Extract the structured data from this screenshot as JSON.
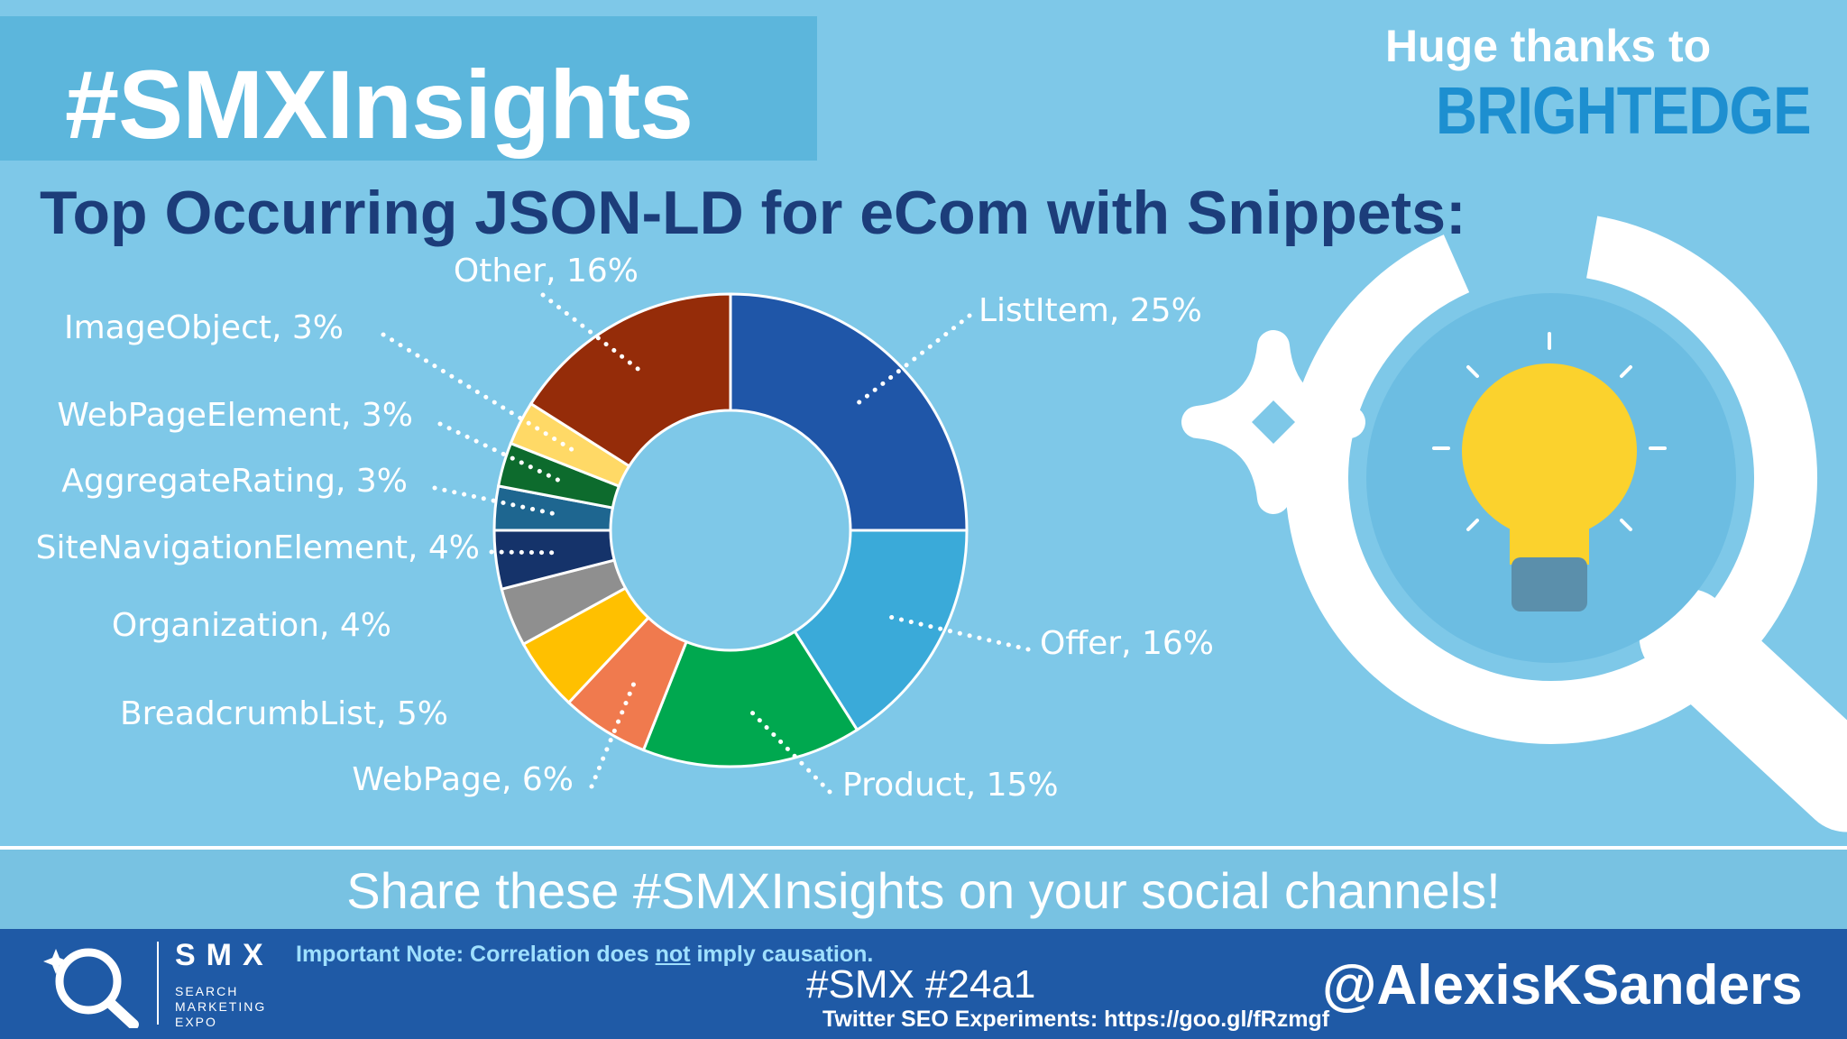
{
  "header": {
    "hashtag": "#SMXInsights",
    "thanks": "Huge thanks to",
    "sponsor": "BRIGHTEDGE"
  },
  "chart_data": {
    "type": "pie",
    "title": "Top Occurring JSON-LD for eCom with Snippets:",
    "donut": true,
    "slices": [
      {
        "label": "ListItem",
        "value": 25,
        "display": "ListItem, 25%",
        "color": "#1f56a8"
      },
      {
        "label": "Offer",
        "value": 16,
        "display": "Offer, 16%",
        "color": "#3aaad9"
      },
      {
        "label": "Product",
        "value": 15,
        "display": "Product, 15%",
        "color": "#00a84f"
      },
      {
        "label": "WebPage",
        "value": 6,
        "display": "WebPage, 6%",
        "color": "#f07a4e"
      },
      {
        "label": "BreadcrumbList",
        "value": 5,
        "display": "BreadcrumbList, 5%",
        "color": "#ffc000"
      },
      {
        "label": "Organization",
        "value": 4,
        "display": "Organization, 4%",
        "color": "#8f8f8f"
      },
      {
        "label": "SiteNavigationElement",
        "value": 4,
        "display": "SiteNavigationElement, 4%",
        "color": "#15336a"
      },
      {
        "label": "AggregateRating",
        "value": 3,
        "display": "AggregateRating, 3%",
        "color": "#1e6690"
      },
      {
        "label": "WebPageElement",
        "value": 3,
        "display": "WebPageElement, 3%",
        "color": "#0d6b2d"
      },
      {
        "label": "ImageObject",
        "value": 3,
        "display": "ImageObject, 3%",
        "color": "#ffd966"
      },
      {
        "label": "Other",
        "value": 16,
        "display": "Other, 16%",
        "color": "#952c09"
      }
    ]
  },
  "share": {
    "text": "Share these #SMXInsights on your social channels!"
  },
  "footer": {
    "brand": "SMX",
    "brand_sub1": "SEARCH",
    "brand_sub2": "MARKETING",
    "brand_sub3": "EXPO",
    "note_prefix": "Important Note: Correlation does ",
    "note_emph": "not",
    "note_suffix": " imply causation.",
    "tags": "#SMX #24a1",
    "link": "Twitter SEO Experiments: https://goo.gl/fRzmgf",
    "handle": "@AlexisKSanders"
  }
}
